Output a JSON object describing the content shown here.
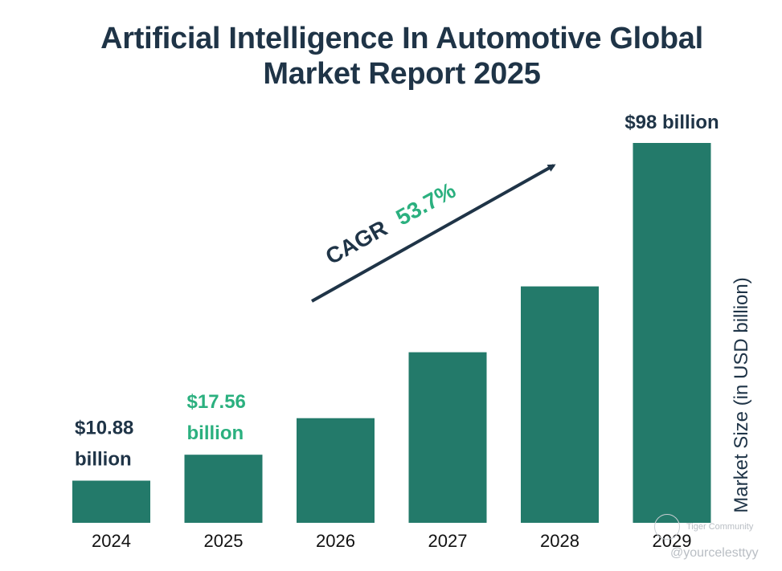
{
  "title": {
    "line1": "Artificial Intelligence In Automotive Global",
    "line2": "Market Report 2025"
  },
  "chart_data": {
    "type": "bar",
    "title": "Artificial Intelligence In Automotive Global Market Report 2025",
    "xlabel": "",
    "ylabel": "Market Size (in USD billion)",
    "categories": [
      "2024",
      "2025",
      "2026",
      "2027",
      "2028",
      "2029"
    ],
    "values": [
      10.88,
      17.56,
      27.0,
      44.0,
      61.0,
      98.0
    ],
    "ylim": [
      0,
      100
    ],
    "grid": false,
    "data_labels": [
      {
        "category": "2024",
        "lines": [
          "$10.88",
          "billion"
        ],
        "color": "#1f3447"
      },
      {
        "category": "2025",
        "lines": [
          "$17.56",
          "billion"
        ],
        "color": "#2bb07f"
      },
      {
        "category": "2029",
        "lines": [
          "$98 billion"
        ],
        "color": "#1f3447"
      }
    ],
    "annotation": {
      "text": "CAGR",
      "value": "53.7%",
      "text_color": "#1f3447",
      "value_color": "#2bb07f"
    },
    "colors": {
      "bar": "#237a6a",
      "text": "#1f3447",
      "accent": "#2bb07f"
    }
  },
  "watermark": {
    "brand": "Tiger Community",
    "handle": "@yourcelesttyy"
  }
}
